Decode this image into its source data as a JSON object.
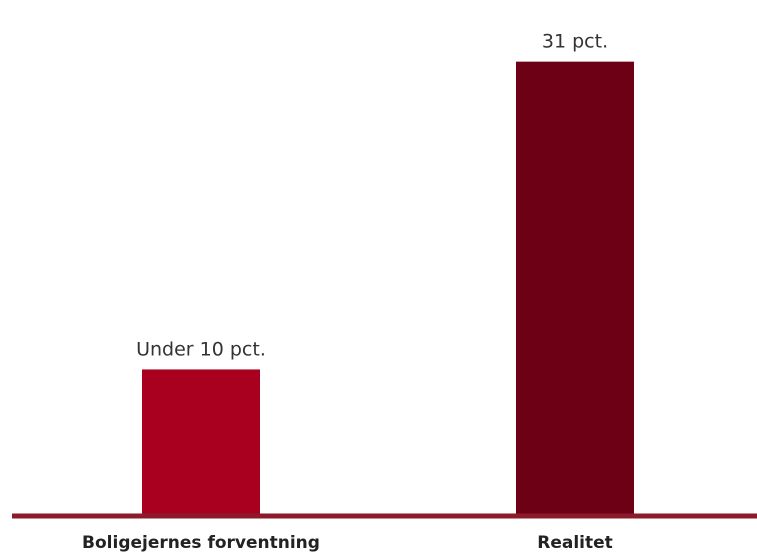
{
  "chart_data": {
    "type": "bar",
    "categories": [
      "Boligejernes forventning",
      "Realitet"
    ],
    "values": [
      10,
      31
    ],
    "data_labels": [
      "Under 10 pct.",
      "31 pct."
    ],
    "colors": [
      "#a8001e",
      "#6e0015"
    ],
    "axis_color": "#8b1a2b",
    "ylim": [
      0,
      32
    ],
    "grid": false,
    "legend": "none"
  }
}
